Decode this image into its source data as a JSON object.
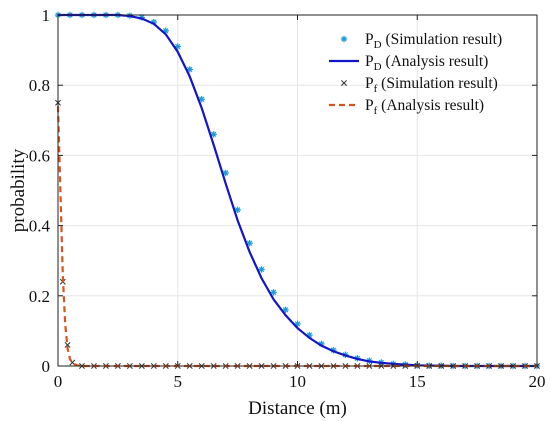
{
  "chart_data": {
    "type": "line",
    "xlabel": "Distance (m)",
    "ylabel": "probability",
    "xlim": [
      0,
      20
    ],
    "ylim": [
      0,
      1
    ],
    "x_ticks": [
      0,
      5,
      10,
      15,
      20
    ],
    "x_tick_labels": [
      "0",
      "5",
      "10",
      "15",
      "20"
    ],
    "y_ticks": [
      0,
      0.2,
      0.4,
      0.6,
      0.8,
      1
    ],
    "y_tick_labels": [
      "0",
      "0.2",
      "0.4",
      "0.6",
      "0.8",
      "1"
    ],
    "grid": true,
    "legend_position": "top-right",
    "series": [
      {
        "name": "P_D (Simulation result)",
        "legend": {
          "main": "P",
          "sub": "D",
          "text": "(Simulation result)"
        },
        "style": "marker",
        "marker": "asterisk",
        "color": "#1f9bd1",
        "x": [
          0.0,
          0.5,
          1.0,
          1.5,
          2.0,
          2.5,
          3.0,
          3.5,
          4.0,
          4.5,
          5.0,
          5.5,
          6.0,
          6.5,
          7.0,
          7.5,
          8.0,
          8.5,
          9.0,
          9.5,
          10.0,
          10.5,
          11.0,
          11.5,
          12.0,
          12.5,
          13.0,
          13.5,
          14.0,
          14.5,
          15.0,
          15.5,
          16.0,
          16.5,
          17.0,
          17.5,
          18.0,
          18.5,
          19.0,
          19.5,
          20.0
        ],
        "y": [
          1.0,
          1.0,
          1.0,
          1.0,
          1.0,
          1.0,
          0.998,
          0.993,
          0.98,
          0.955,
          0.91,
          0.845,
          0.76,
          0.66,
          0.55,
          0.445,
          0.35,
          0.275,
          0.21,
          0.16,
          0.12,
          0.088,
          0.063,
          0.045,
          0.032,
          0.022,
          0.015,
          0.01,
          0.006,
          0.004,
          0.002,
          0.001,
          0.001,
          0.0,
          0.0,
          0.0,
          0.0,
          0.0,
          0.0,
          0.0,
          0.0
        ]
      },
      {
        "name": "P_D (Analysis result)",
        "legend": {
          "main": "P",
          "sub": "D",
          "text": "(Analysis result)"
        },
        "style": "solid",
        "color": "#1414c8",
        "x": [
          0.0,
          0.5,
          1.0,
          1.5,
          2.0,
          2.5,
          3.0,
          3.5,
          4.0,
          4.5,
          5.0,
          5.5,
          6.0,
          6.5,
          7.0,
          7.5,
          8.0,
          8.5,
          9.0,
          9.5,
          10.0,
          10.5,
          11.0,
          11.5,
          12.0,
          12.5,
          13.0,
          13.5,
          14.0,
          14.5,
          15.0,
          15.5,
          16.0,
          16.5,
          17.0,
          17.5,
          18.0,
          18.5,
          19.0,
          19.5,
          20.0
        ],
        "y": [
          1.0,
          1.0,
          1.0,
          1.0,
          1.0,
          1.0,
          0.997,
          0.99,
          0.975,
          0.945,
          0.895,
          0.825,
          0.735,
          0.63,
          0.52,
          0.415,
          0.325,
          0.25,
          0.19,
          0.145,
          0.108,
          0.08,
          0.058,
          0.042,
          0.03,
          0.02,
          0.013,
          0.009,
          0.006,
          0.004,
          0.002,
          0.001,
          0.001,
          0.0,
          0.0,
          0.0,
          0.0,
          0.0,
          0.0,
          0.0,
          0.0
        ]
      },
      {
        "name": "P_f (Simulation result)",
        "legend": {
          "main": "P",
          "sub": "f",
          "text": "(Simulation result)"
        },
        "style": "marker",
        "marker": "x",
        "color": "#333333",
        "x": [
          0.0,
          0.2,
          0.4,
          0.6,
          1.0,
          1.5,
          2.0,
          2.5,
          3.0,
          3.5,
          4.0,
          4.5,
          5.0,
          5.5,
          6.0,
          6.5,
          7.0,
          7.5,
          8.0,
          8.5,
          9.0,
          9.5,
          10.0,
          10.5,
          11.0,
          11.5,
          12.0,
          12.5,
          13.0,
          13.5,
          14.0,
          14.5,
          15.0,
          15.5,
          16.0,
          16.5,
          17.0,
          17.5,
          18.0,
          18.5,
          19.0,
          19.5,
          20.0
        ],
        "y": [
          0.75,
          0.24,
          0.06,
          0.01,
          0.0,
          0.0,
          0.0,
          0.0,
          0.0,
          0.0,
          0.0,
          0.0,
          0.0,
          0.0,
          0.0,
          0.0,
          0.0,
          0.0,
          0.0,
          0.0,
          0.0,
          0.0,
          0.0,
          0.0,
          0.0,
          0.0,
          0.0,
          0.0,
          0.0,
          0.0,
          0.0,
          0.0,
          0.0,
          0.0,
          0.0,
          0.0,
          0.0,
          0.0,
          0.0,
          0.0,
          0.0,
          0.0,
          0.0
        ]
      },
      {
        "name": "P_f (Analysis result)",
        "legend": {
          "main": "P",
          "sub": "f",
          "text": "(Analysis result)"
        },
        "style": "dashed",
        "color": "#d9531e",
        "x": [
          0.0,
          0.1,
          0.2,
          0.3,
          0.4,
          0.5,
          0.6,
          0.8,
          1.0,
          2.0,
          5.0,
          10.0,
          15.0,
          20.0
        ],
        "y": [
          0.74,
          0.5,
          0.26,
          0.12,
          0.05,
          0.02,
          0.008,
          0.002,
          0.0,
          0.0,
          0.0,
          0.0,
          0.0,
          0.0
        ]
      }
    ]
  }
}
